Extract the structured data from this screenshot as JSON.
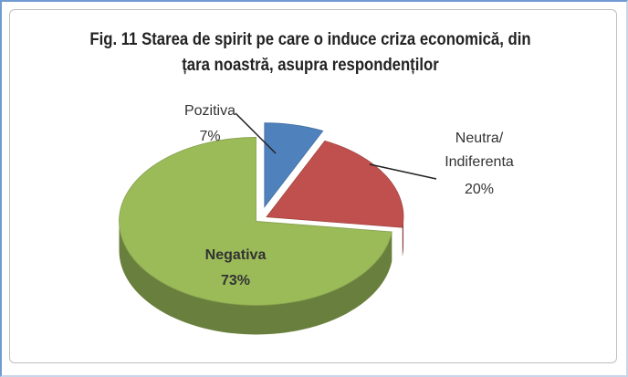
{
  "chart_data": {
    "type": "pie3d",
    "title": "Fig. 11 Starea de spirit pe care o induce criza economică, din țara noastră, asupra respondenților",
    "categories": [
      "Pozitiva",
      "Neutra/Indiferenta",
      "Negativa"
    ],
    "values": [
      7,
      20,
      73
    ],
    "value_labels": [
      "7%",
      "20%",
      "73%"
    ],
    "colors": [
      "#4f81bd",
      "#c0504d",
      "#9bbb59"
    ]
  }
}
